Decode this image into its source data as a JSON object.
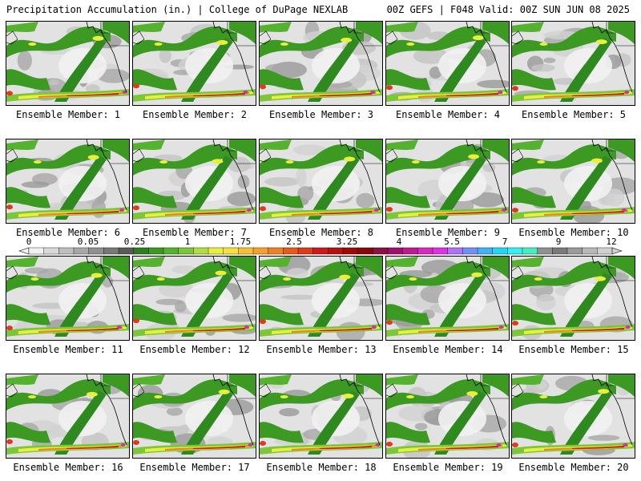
{
  "header": {
    "left_title": "Precipitation Accumulation (in.) | College of DuPage NEXLAB",
    "right_title": "00Z GEFS | F048 Valid: 00Z SUN JUN 08 2025"
  },
  "panels": [
    {
      "label": "Ensemble Member: 1"
    },
    {
      "label": "Ensemble Member: 2"
    },
    {
      "label": "Ensemble Member: 3"
    },
    {
      "label": "Ensemble Member: 4"
    },
    {
      "label": "Ensemble Member: 5"
    },
    {
      "label": "Ensemble Member: 6"
    },
    {
      "label": "Ensemble Member: 7"
    },
    {
      "label": "Ensemble Member: 8"
    },
    {
      "label": "Ensemble Member: 9"
    },
    {
      "label": "Ensemble Member: 10"
    },
    {
      "label": "Ensemble Member: 11"
    },
    {
      "label": "Ensemble Member: 12"
    },
    {
      "label": "Ensemble Member: 13"
    },
    {
      "label": "Ensemble Member: 14"
    },
    {
      "label": "Ensemble Member: 15"
    },
    {
      "label": "Ensemble Member: 16"
    },
    {
      "label": "Ensemble Member: 17"
    },
    {
      "label": "Ensemble Member: 18"
    },
    {
      "label": "Ensemble Member: 19"
    },
    {
      "label": "Ensemble Member: 20"
    }
  ],
  "colorbar": {
    "labels": [
      "0",
      "0.05",
      "0.25",
      "1",
      "1.75",
      "2.5",
      "3.25",
      "4",
      "5.5",
      "7",
      "9",
      "12"
    ],
    "colors": [
      "#f0f0f0",
      "#d8d8d8",
      "#bebebe",
      "#a8a8a8",
      "#909090",
      "#787878",
      "#5a5a5a",
      "#2e7d1f",
      "#3c9a23",
      "#55b22f",
      "#7cc63a",
      "#b0de3c",
      "#e8f03c",
      "#f8e03a",
      "#f8c030",
      "#f8a028",
      "#f08020",
      "#e85a1a",
      "#e03a18",
      "#d01818",
      "#b81010",
      "#a00808",
      "#880808",
      "#8c1040",
      "#a01070",
      "#c01890",
      "#d828c0",
      "#e030e8",
      "#b070f8",
      "#7090f8",
      "#40b0f8",
      "#20d8f8",
      "#30f0f0",
      "#40f0c0",
      "#909090",
      "#7a7a7a",
      "#9a9a9a",
      "#b8b8b8",
      "#d0d0d0"
    ]
  }
}
